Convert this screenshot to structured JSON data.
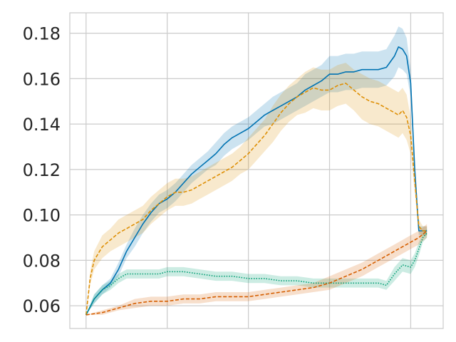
{
  "chart_data": {
    "type": "line",
    "title": "",
    "xlabel": "",
    "ylabel": "",
    "grid": true,
    "legend": "none",
    "xlim": [
      -0.2,
      4.4
    ],
    "ylim": [
      0.05,
      0.189
    ],
    "x_ticks": [
      0,
      1,
      2,
      3,
      4
    ],
    "x_tick_labels": [
      "",
      "",
      "",
      "",
      ""
    ],
    "y_ticks": [
      0.06,
      0.08,
      0.1,
      0.12,
      0.14,
      0.16,
      0.18
    ],
    "y_tick_labels": [
      "0.06",
      "0.08",
      "0.10",
      "0.12",
      "0.14",
      "0.16",
      "0.18"
    ],
    "series": [
      {
        "color": "#0173b2",
        "style": "solid",
        "x": [
          0,
          0.1,
          0.2,
          0.3,
          0.4,
          0.5,
          0.6,
          0.7,
          0.8,
          0.9,
          1.0,
          1.1,
          1.2,
          1.3,
          1.4,
          1.5,
          1.6,
          1.7,
          1.8,
          1.9,
          2.0,
          2.1,
          2.2,
          2.3,
          2.4,
          2.5,
          2.6,
          2.7,
          2.8,
          2.9,
          3.0,
          3.1,
          3.2,
          3.3,
          3.4,
          3.5,
          3.6,
          3.7,
          3.8,
          3.85,
          3.9,
          3.95,
          4.0,
          4.05,
          4.1,
          4.15,
          4.2
        ],
        "values": [
          0.056,
          0.063,
          0.067,
          0.07,
          0.076,
          0.084,
          0.09,
          0.096,
          0.101,
          0.105,
          0.107,
          0.11,
          0.114,
          0.118,
          0.121,
          0.124,
          0.127,
          0.131,
          0.134,
          0.136,
          0.138,
          0.141,
          0.144,
          0.146,
          0.148,
          0.15,
          0.152,
          0.155,
          0.157,
          0.159,
          0.162,
          0.162,
          0.163,
          0.163,
          0.164,
          0.164,
          0.164,
          0.165,
          0.17,
          0.174,
          0.173,
          0.17,
          0.158,
          0.12,
          0.093,
          0.093,
          0.093
        ],
        "band_width": [
          0.0,
          0.002,
          0.002,
          0.002,
          0.003,
          0.003,
          0.004,
          0.004,
          0.004,
          0.004,
          0.004,
          0.004,
          0.004,
          0.004,
          0.004,
          0.004,
          0.005,
          0.005,
          0.005,
          0.005,
          0.005,
          0.005,
          0.005,
          0.006,
          0.006,
          0.006,
          0.006,
          0.007,
          0.007,
          0.007,
          0.008,
          0.008,
          0.008,
          0.008,
          0.008,
          0.008,
          0.008,
          0.008,
          0.009,
          0.009,
          0.009,
          0.008,
          0.006,
          0.004,
          0.002,
          0.002,
          0.002
        ]
      },
      {
        "color": "#de8f05",
        "style": "dashed",
        "x": [
          0,
          0.05,
          0.1,
          0.2,
          0.3,
          0.4,
          0.5,
          0.6,
          0.7,
          0.8,
          0.9,
          1.0,
          1.1,
          1.2,
          1.3,
          1.4,
          1.5,
          1.6,
          1.7,
          1.8,
          1.9,
          2.0,
          2.1,
          2.2,
          2.3,
          2.4,
          2.5,
          2.6,
          2.7,
          2.8,
          2.9,
          3.0,
          3.1,
          3.2,
          3.3,
          3.4,
          3.5,
          3.6,
          3.7,
          3.8,
          3.85,
          3.9,
          3.95,
          4.0,
          4.05,
          4.1,
          4.15,
          4.2
        ],
        "values": [
          0.056,
          0.072,
          0.08,
          0.086,
          0.089,
          0.092,
          0.094,
          0.096,
          0.098,
          0.102,
          0.105,
          0.108,
          0.11,
          0.11,
          0.111,
          0.113,
          0.115,
          0.117,
          0.119,
          0.121,
          0.124,
          0.127,
          0.131,
          0.135,
          0.14,
          0.145,
          0.149,
          0.152,
          0.154,
          0.156,
          0.155,
          0.155,
          0.157,
          0.158,
          0.155,
          0.152,
          0.15,
          0.149,
          0.147,
          0.145,
          0.144,
          0.146,
          0.143,
          0.135,
          0.115,
          0.095,
          0.093,
          0.093
        ],
        "band_width": [
          0.0,
          0.003,
          0.004,
          0.005,
          0.005,
          0.006,
          0.006,
          0.006,
          0.006,
          0.006,
          0.006,
          0.006,
          0.006,
          0.006,
          0.006,
          0.006,
          0.006,
          0.006,
          0.006,
          0.006,
          0.006,
          0.007,
          0.007,
          0.007,
          0.008,
          0.008,
          0.008,
          0.008,
          0.009,
          0.009,
          0.009,
          0.009,
          0.009,
          0.009,
          0.009,
          0.01,
          0.01,
          0.01,
          0.01,
          0.01,
          0.01,
          0.01,
          0.01,
          0.008,
          0.005,
          0.003,
          0.002,
          0.002
        ]
      },
      {
        "color": "#029e73",
        "style": "dotted",
        "x": [
          0,
          0.1,
          0.2,
          0.3,
          0.4,
          0.5,
          0.6,
          0.7,
          0.8,
          0.9,
          1.0,
          1.2,
          1.4,
          1.6,
          1.8,
          2.0,
          2.2,
          2.4,
          2.6,
          2.8,
          3.0,
          3.2,
          3.4,
          3.5,
          3.6,
          3.7,
          3.8,
          3.9,
          4.0,
          4.05,
          4.1,
          4.15,
          4.2
        ],
        "values": [
          0.056,
          0.063,
          0.067,
          0.069,
          0.072,
          0.074,
          0.074,
          0.074,
          0.074,
          0.074,
          0.075,
          0.075,
          0.074,
          0.073,
          0.073,
          0.072,
          0.072,
          0.071,
          0.071,
          0.07,
          0.07,
          0.07,
          0.07,
          0.07,
          0.07,
          0.069,
          0.074,
          0.078,
          0.077,
          0.08,
          0.085,
          0.09,
          0.092
        ],
        "band_width": [
          0.0,
          0.002,
          0.002,
          0.002,
          0.002,
          0.002,
          0.002,
          0.002,
          0.002,
          0.002,
          0.002,
          0.002,
          0.002,
          0.002,
          0.002,
          0.002,
          0.002,
          0.002,
          0.002,
          0.002,
          0.002,
          0.002,
          0.002,
          0.002,
          0.002,
          0.002,
          0.003,
          0.003,
          0.003,
          0.003,
          0.003,
          0.002,
          0.002
        ]
      },
      {
        "color": "#d55e00",
        "style": "dashed",
        "x": [
          0,
          0.2,
          0.4,
          0.6,
          0.8,
          1.0,
          1.2,
          1.4,
          1.6,
          1.8,
          2.0,
          2.2,
          2.4,
          2.6,
          2.8,
          3.0,
          3.2,
          3.4,
          3.6,
          3.8,
          4.0,
          4.1,
          4.2
        ],
        "values": [
          0.056,
          0.057,
          0.059,
          0.061,
          0.062,
          0.062,
          0.063,
          0.063,
          0.064,
          0.064,
          0.064,
          0.065,
          0.066,
          0.067,
          0.068,
          0.07,
          0.073,
          0.076,
          0.08,
          0.084,
          0.088,
          0.09,
          0.093
        ],
        "band_width": [
          0.0,
          0.001,
          0.001,
          0.002,
          0.002,
          0.002,
          0.002,
          0.002,
          0.002,
          0.002,
          0.002,
          0.002,
          0.002,
          0.002,
          0.002,
          0.003,
          0.003,
          0.003,
          0.003,
          0.003,
          0.003,
          0.003,
          0.003
        ]
      }
    ]
  }
}
